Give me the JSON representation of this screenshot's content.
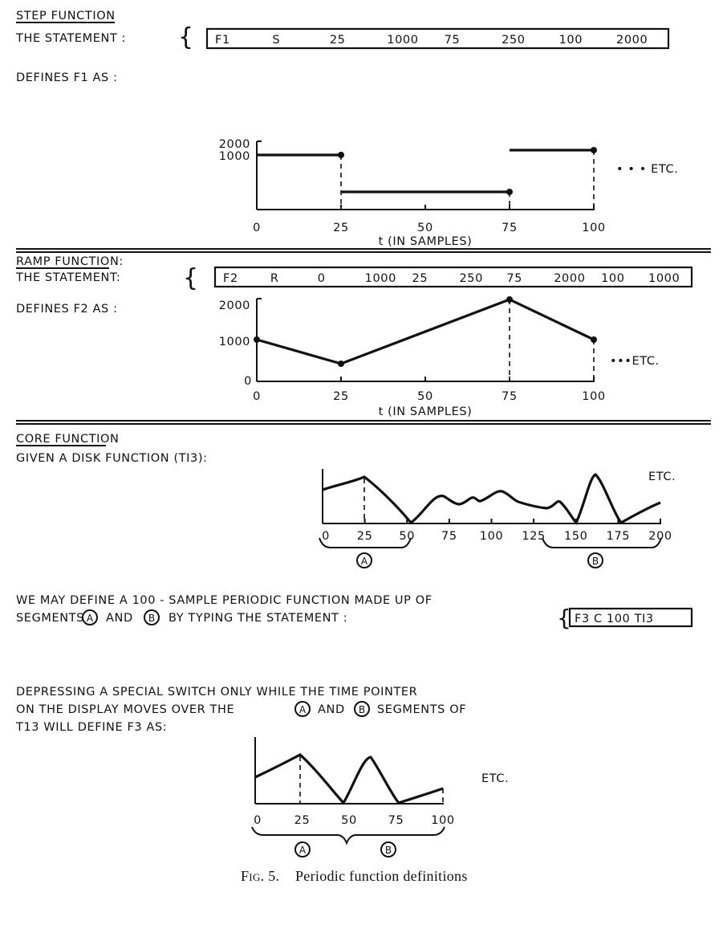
{
  "step": {
    "heading": "STEP FUNCTION",
    "statement_label": "THE STATEMENT :",
    "statement_tokens": [
      "F1",
      "S",
      "25",
      "1000",
      "75",
      "250",
      "100",
      "2000"
    ],
    "defines_label": "DEFINES F1 AS :",
    "y_ticks": [
      "2000",
      "1000"
    ],
    "x_ticks": [
      "0",
      "25",
      "50",
      "75",
      "100"
    ],
    "x_label": "t (IN SAMPLES)",
    "etc": "• • • ETC.",
    "points": [
      {
        "t": 0,
        "v": 1000
      },
      {
        "t": 25,
        "v": 1000
      },
      {
        "t": 25,
        "v": 250
      },
      {
        "t": 75,
        "v": 250
      },
      {
        "t": 75,
        "v": 2000
      },
      {
        "t": 100,
        "v": 2000
      }
    ]
  },
  "ramp": {
    "heading": "RAMP FUNCTION:",
    "statement_label": "THE STATEMENT:",
    "statement_tokens": [
      "F2",
      "R",
      "0",
      "1000",
      "25",
      "250",
      "75",
      "2000",
      "100",
      "1000"
    ],
    "defines_label": "DEFINES F2 AS :",
    "y_ticks": [
      "2000",
      "1000",
      "0"
    ],
    "x_ticks": [
      "0",
      "25",
      "50",
      "75",
      "100"
    ],
    "x_label": "t (IN SAMPLES)",
    "etc": "•••ETC.",
    "points": [
      {
        "t": 0,
        "v": 1000
      },
      {
        "t": 25,
        "v": 250
      },
      {
        "t": 75,
        "v": 2000
      },
      {
        "t": 100,
        "v": 1000
      }
    ]
  },
  "core": {
    "heading": "CORE FUNCTION",
    "given_label": "GIVEN A DISK FUNCTION (TI3):",
    "x_ticks": [
      "0",
      "25",
      "50",
      "75",
      "100",
      "125",
      "150",
      "175",
      "200"
    ],
    "etc": "ETC.",
    "segment_a": "A",
    "segment_b": "B",
    "para1_line1": "WE MAY DEFINE A 100 - SAMPLE PERIODIC FUNCTION MADE UP OF",
    "para1_line2_a": "SEGMENTS",
    "para1_line2_b": "AND",
    "para1_line2_c": "BY TYPING THE STATEMENT :",
    "statement": "F3 C 100 TI3",
    "para2_line1": "DEPRESSING A SPECIAL SWITCH ONLY WHILE THE TIME POINTER",
    "para2_line2_a": "ON THE DISPLAY MOVES OVER THE",
    "para2_line2_b": "AND",
    "para2_line2_c": "SEGMENTS OF",
    "para2_line3": "T13 WILL DEFINE F3 AS:",
    "result_x_ticks": [
      "0",
      "25",
      "50",
      "75",
      "100"
    ],
    "result_etc": "ETC."
  },
  "caption": {
    "fig": "Fig. 5.",
    "text": "Periodic function definitions"
  }
}
